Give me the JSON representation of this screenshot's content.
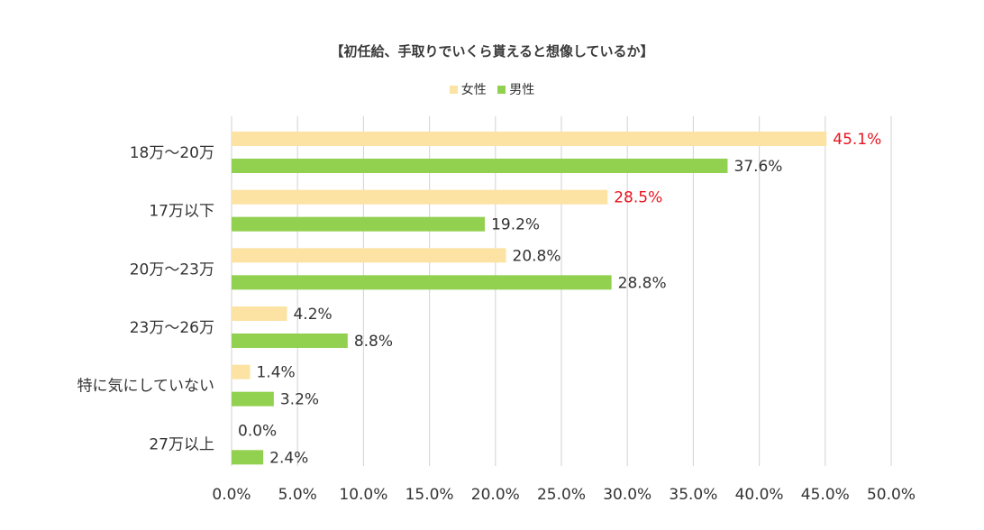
{
  "chart_data": {
    "type": "bar",
    "orientation": "horizontal",
    "title": "【初任給、手取りでいくら貰えると想像しているか】",
    "categories": [
      "18万〜20万",
      "17万以下",
      "20万〜23万",
      "23万〜26万",
      "特に気にしていない",
      "27万以上"
    ],
    "series": [
      {
        "name": "女性",
        "color": "#FCE3A3",
        "values": [
          45.1,
          28.5,
          20.8,
          4.2,
          1.4,
          0.0
        ],
        "labels": [
          "45.1%",
          "28.5%",
          "20.8%",
          "4.2%",
          "1.4%",
          "0.0%"
        ]
      },
      {
        "name": "男性",
        "color": "#92D050",
        "values": [
          37.6,
          19.2,
          28.8,
          8.8,
          3.2,
          2.4
        ],
        "labels": [
          "37.6%",
          "19.2%",
          "28.8%",
          "8.8%",
          "3.2%",
          "2.4%"
        ]
      }
    ],
    "highlight_color": "#E8141E",
    "highlighted_labels": [
      [
        0,
        0
      ],
      [
        1,
        0
      ]
    ],
    "xlim": [
      0,
      50
    ],
    "x_ticks": [
      "0.0%",
      "5.0%",
      "10.0%",
      "15.0%",
      "20.0%",
      "25.0%",
      "30.0%",
      "35.0%",
      "40.0%",
      "45.0%",
      "50.0%"
    ],
    "grid": true,
    "legend_position": "top-center"
  }
}
